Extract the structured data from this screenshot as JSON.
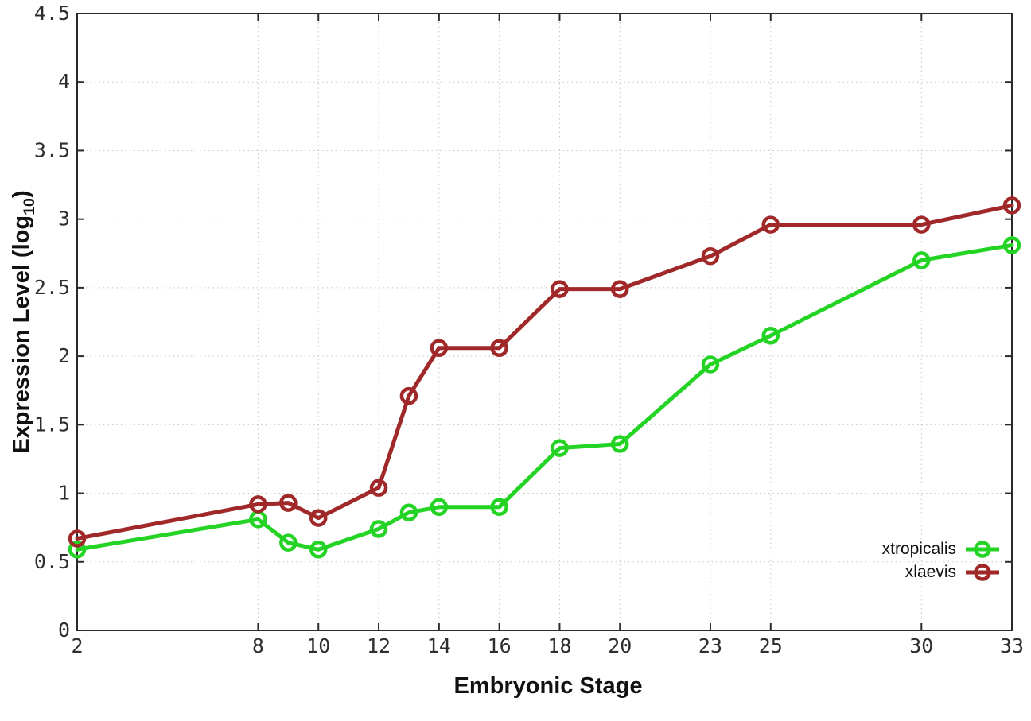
{
  "chart_data": {
    "type": "line",
    "title": "",
    "xlabel": "Embryonic Stage",
    "ylabel_prefix": "Expression Level (log",
    "ylabel_sub": "10",
    "ylabel_suffix": ")",
    "xlim": [
      2,
      33
    ],
    "ylim": [
      0,
      4.5
    ],
    "xticks": [
      2,
      8,
      10,
      12,
      14,
      16,
      18,
      20,
      23,
      25,
      30,
      33
    ],
    "yticks": [
      0,
      0.5,
      1,
      1.5,
      2,
      2.5,
      3,
      3.5,
      4,
      4.5
    ],
    "grid": true,
    "legend_position": "bottom-right",
    "x": [
      2,
      8,
      9,
      10,
      12,
      13,
      14,
      16,
      18,
      20,
      23,
      25,
      30,
      33
    ],
    "series": [
      {
        "name": "xtropicalis",
        "color": "#24d424",
        "values": [
          0.59,
          0.81,
          0.64,
          0.59,
          0.74,
          0.86,
          0.9,
          0.9,
          1.33,
          1.36,
          1.94,
          2.15,
          2.7,
          2.81
        ]
      },
      {
        "name": "xlaevis",
        "color": "#a02828",
        "values": [
          0.67,
          0.92,
          0.93,
          0.82,
          1.04,
          1.71,
          2.06,
          2.06,
          2.49,
          2.49,
          2.73,
          2.96,
          2.96,
          3.1
        ]
      }
    ]
  },
  "style_colors": {
    "grid": "#c6c6c6",
    "border": "#2a2a2a",
    "tick": "#2a2a2a"
  }
}
